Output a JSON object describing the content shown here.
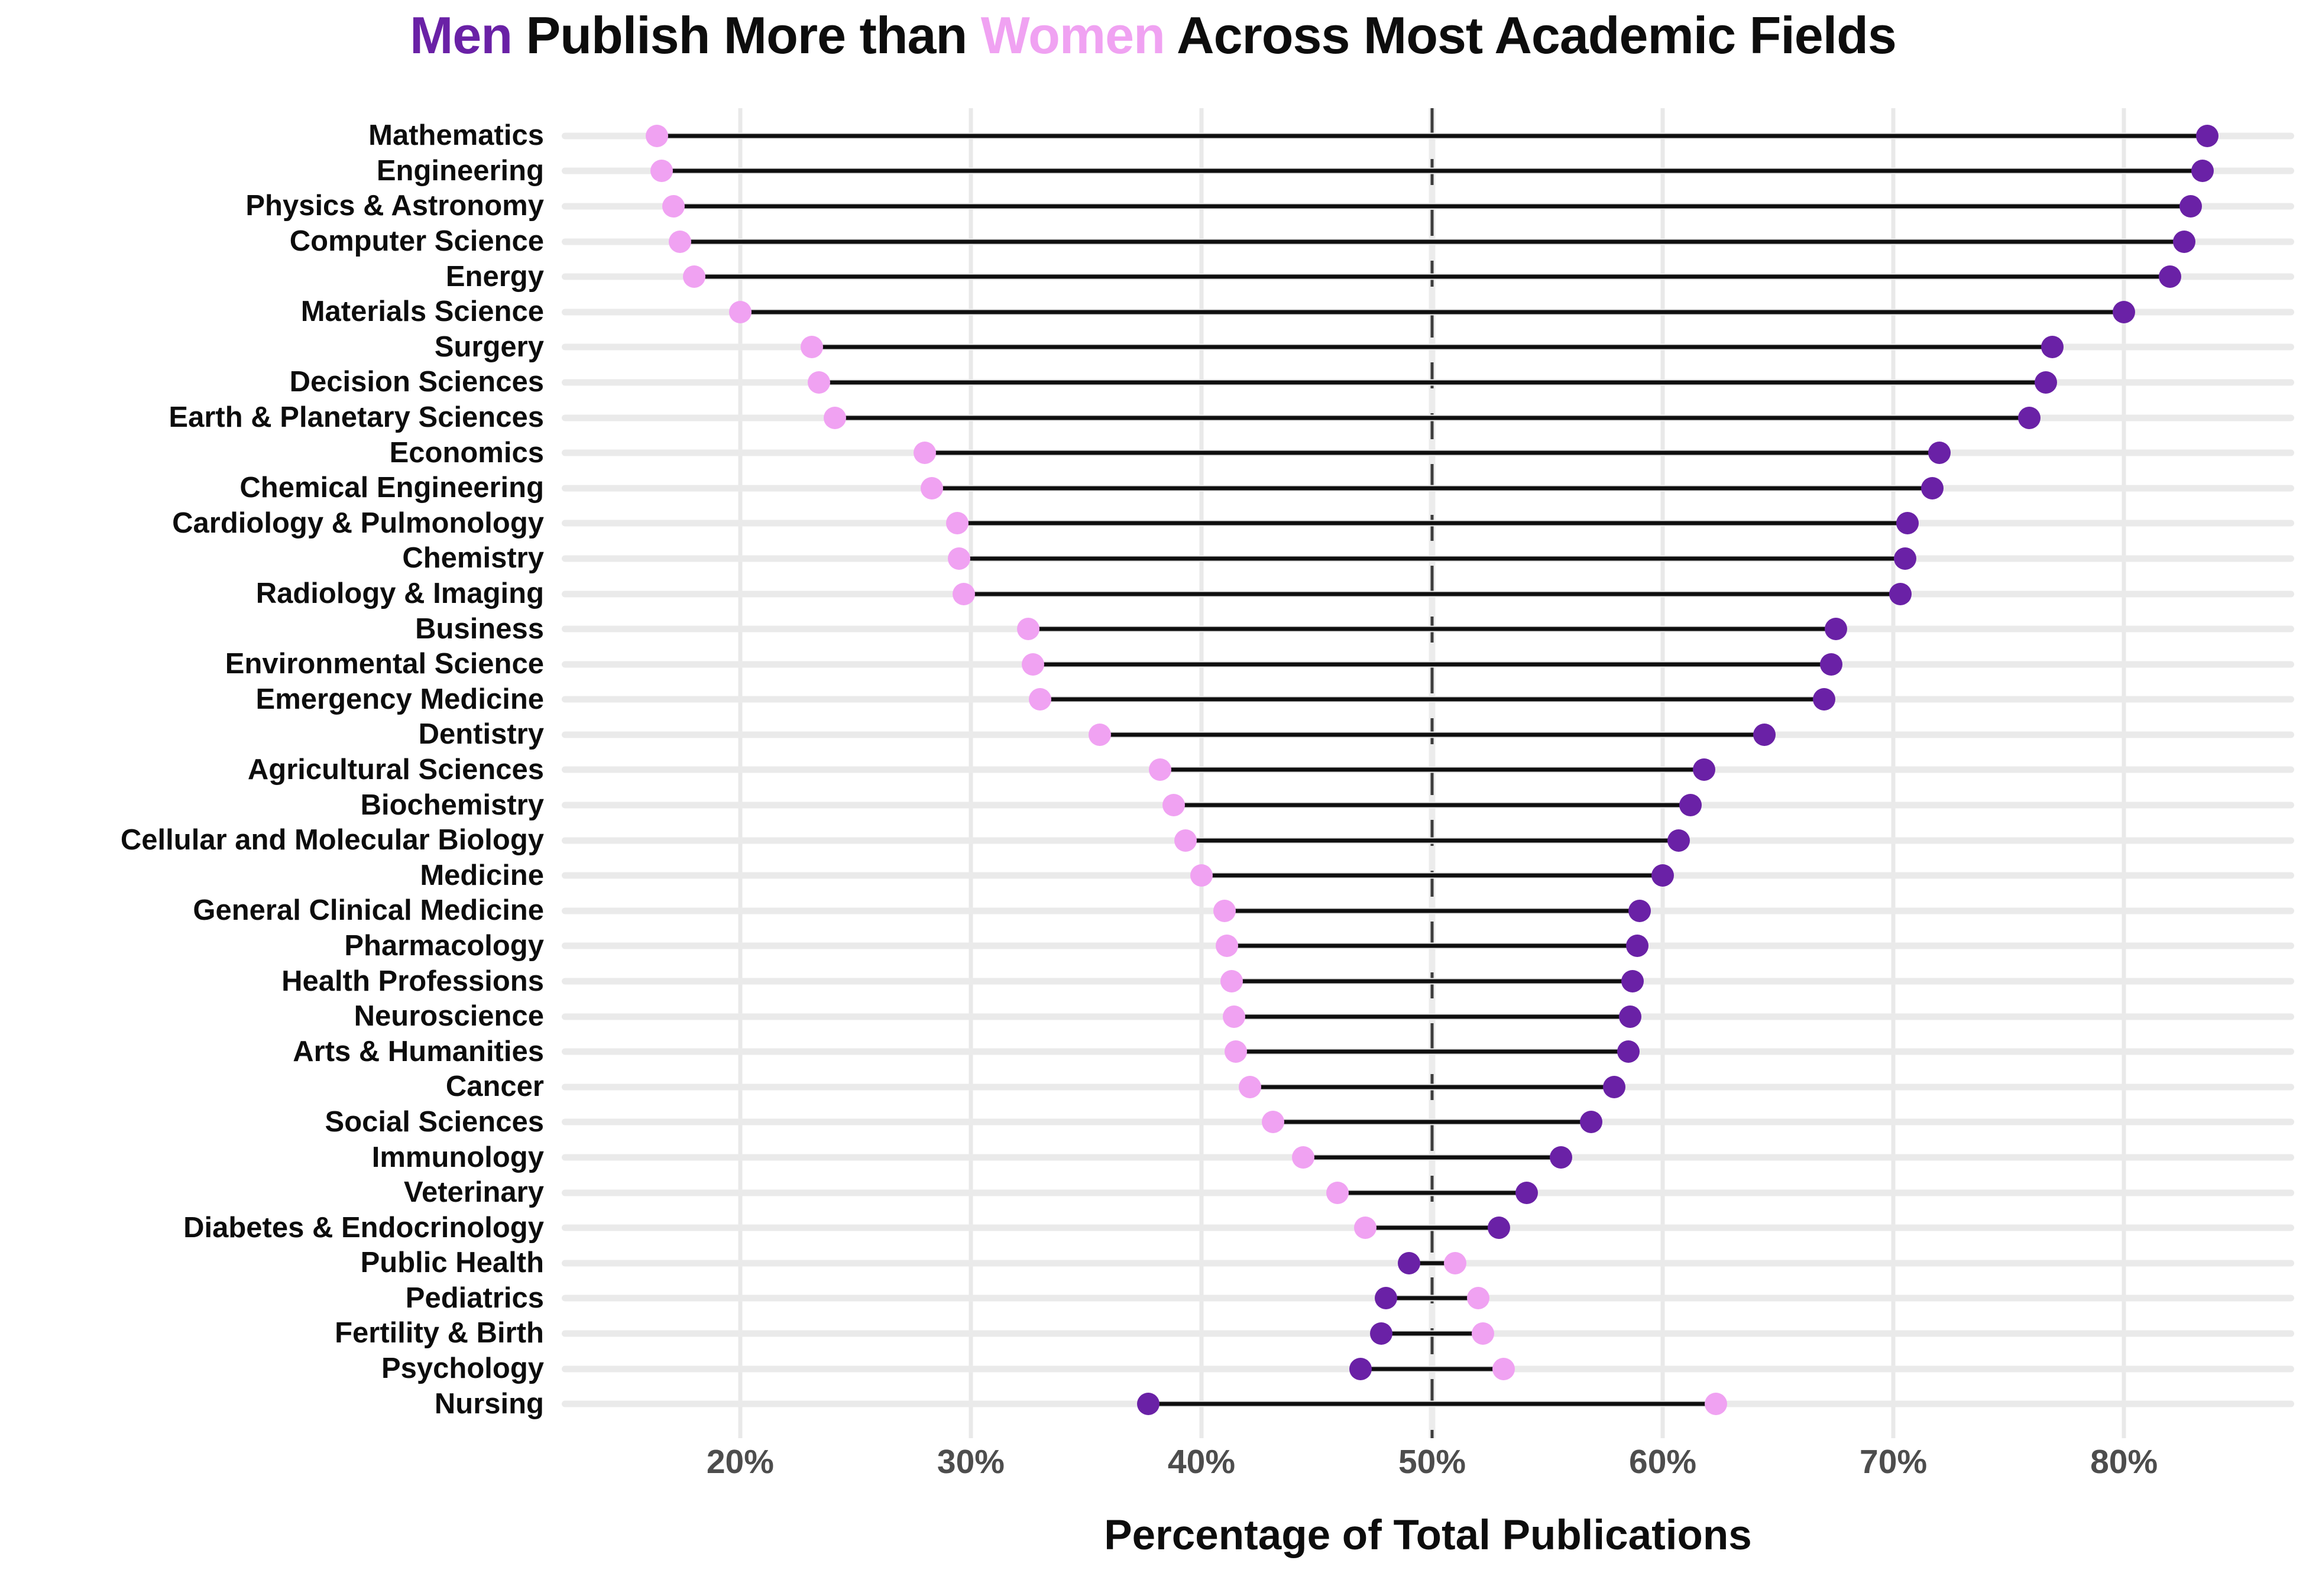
{
  "title": {
    "full_text": "Men Publish More than Women Across Most Academic Fields",
    "parts": [
      {
        "text": "Men",
        "color_key": "men"
      },
      {
        "text": " Publish More than ",
        "color_key": "text"
      },
      {
        "text": "Women",
        "color_key": "women"
      },
      {
        "text": " Across Most Academic Fields",
        "color_key": "text"
      }
    ]
  },
  "colors": {
    "men": "#6A21A6",
    "women": "#F0A2F2",
    "text": "#0d0d0d",
    "tick": "#4d4d4d",
    "grid": "#e9e9e9",
    "track": "#eaeaea",
    "connector": "#0f0f0f",
    "dash": "#3d3d3d"
  },
  "xaxis": {
    "title": "Percentage of Total Publications",
    "tick_values": [
      20,
      30,
      40,
      50,
      60,
      70,
      80
    ],
    "tick_labels": [
      "20%",
      "30%",
      "40%",
      "50%",
      "60%",
      "70%",
      "80%"
    ],
    "domain": [
      12.26,
      87.38
    ],
    "reference_line_value": 50,
    "grid": true
  },
  "chart_data": {
    "type": "dumbbell",
    "unit": "percent of total publications",
    "series": [
      "Women",
      "Men"
    ],
    "xlabel": "Percentage of Total Publications",
    "xlim": [
      12.26,
      87.38
    ],
    "reference_line": 50,
    "legend_position": "in-title",
    "fields": [
      {
        "name": "Mathematics",
        "women": 16.4,
        "men": 83.6
      },
      {
        "name": "Engineering",
        "women": 16.6,
        "men": 83.4
      },
      {
        "name": "Physics & Astronomy",
        "women": 17.1,
        "men": 82.9
      },
      {
        "name": "Computer Science",
        "women": 17.4,
        "men": 82.6
      },
      {
        "name": "Energy",
        "women": 18.0,
        "men": 82.0
      },
      {
        "name": "Materials Science",
        "women": 20.0,
        "men": 80.0
      },
      {
        "name": "Surgery",
        "women": 23.1,
        "men": 76.9
      },
      {
        "name": "Decision Sciences",
        "women": 23.4,
        "men": 76.6
      },
      {
        "name": "Earth & Planetary Sciences",
        "women": 24.1,
        "men": 75.9
      },
      {
        "name": "Economics",
        "women": 28.0,
        "men": 72.0
      },
      {
        "name": "Chemical Engineering",
        "women": 28.3,
        "men": 71.7
      },
      {
        "name": "Cardiology & Pulmonology",
        "women": 29.4,
        "men": 70.6
      },
      {
        "name": "Chemistry",
        "women": 29.5,
        "men": 70.5
      },
      {
        "name": "Radiology & Imaging",
        "women": 29.7,
        "men": 70.3
      },
      {
        "name": "Business",
        "women": 32.5,
        "men": 67.5
      },
      {
        "name": "Environmental Science",
        "women": 32.7,
        "men": 67.3
      },
      {
        "name": "Emergency Medicine",
        "women": 33.0,
        "men": 67.0
      },
      {
        "name": "Dentistry",
        "women": 35.6,
        "men": 64.4
      },
      {
        "name": "Agricultural Sciences",
        "women": 38.2,
        "men": 61.8
      },
      {
        "name": "Biochemistry",
        "women": 38.8,
        "men": 61.2
      },
      {
        "name": "Cellular and Molecular Biology",
        "women": 39.3,
        "men": 60.7
      },
      {
        "name": "Medicine",
        "women": 40.0,
        "men": 60.0
      },
      {
        "name": "General Clinical Medicine",
        "women": 41.0,
        "men": 59.0
      },
      {
        "name": "Pharmacology",
        "women": 41.1,
        "men": 58.9
      },
      {
        "name": "Health Professions",
        "women": 41.3,
        "men": 58.7
      },
      {
        "name": "Neuroscience",
        "women": 41.4,
        "men": 58.6
      },
      {
        "name": "Arts & Humanities",
        "women": 41.5,
        "men": 58.5
      },
      {
        "name": "Cancer",
        "women": 42.1,
        "men": 57.9
      },
      {
        "name": "Social Sciences",
        "women": 43.1,
        "men": 56.9
      },
      {
        "name": "Immunology",
        "women": 44.4,
        "men": 55.6
      },
      {
        "name": "Veterinary",
        "women": 45.9,
        "men": 54.1
      },
      {
        "name": "Diabetes & Endocrinology",
        "women": 47.1,
        "men": 52.9
      },
      {
        "name": "Public Health",
        "women": 51.0,
        "men": 49.0
      },
      {
        "name": "Pediatrics",
        "women": 52.0,
        "men": 48.0
      },
      {
        "name": "Fertility & Birth",
        "women": 52.2,
        "men": 47.8
      },
      {
        "name": "Psychology",
        "women": 53.1,
        "men": 46.9
      },
      {
        "name": "Nursing",
        "women": 62.3,
        "men": 37.7
      }
    ]
  }
}
